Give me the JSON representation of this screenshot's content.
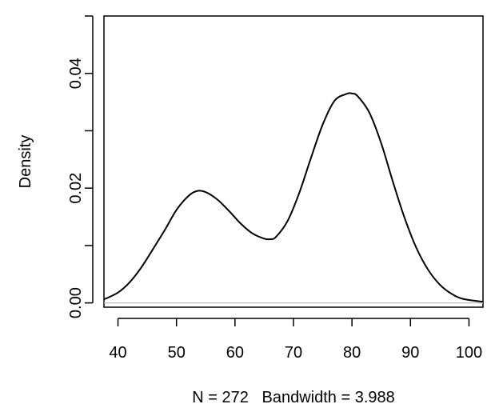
{
  "chart_data": {
    "type": "line",
    "title": "",
    "xlabel": "N = 272   Bandwidth = 3.988",
    "ylabel": "Density",
    "xlim": [
      37.6,
      102.4
    ],
    "ylim": [
      -0.00075,
      0.05
    ],
    "x_ticks": [
      40,
      50,
      60,
      70,
      80,
      90,
      100
    ],
    "x_tick_labels": [
      "40",
      "50",
      "60",
      "70",
      "80",
      "90",
      "100"
    ],
    "y_ticks": [
      0,
      0.01,
      0.02,
      0.03,
      0.04,
      0.05
    ],
    "y_tick_labels": [
      "0.00",
      "",
      "0.02",
      "",
      "0.04",
      ""
    ],
    "baseline": 0,
    "grid": false,
    "legend": "none",
    "colors": {
      "curve": "#000000",
      "baseline": "#bebebe",
      "axis": "#000000"
    },
    "series": [
      {
        "x": [
          37.6,
          40,
          42,
          44,
          46,
          48,
          50,
          52,
          53.5,
          55,
          57,
          59,
          61,
          63,
          65,
          66,
          67,
          69,
          71,
          73,
          75,
          77,
          79,
          80,
          81,
          83,
          85,
          87,
          89,
          91,
          93,
          95,
          97,
          99,
          102.4
        ],
        "y": [
          0.0006,
          0.0018,
          0.0036,
          0.0062,
          0.0094,
          0.0127,
          0.0162,
          0.0186,
          0.0195,
          0.0193,
          0.018,
          0.016,
          0.0138,
          0.0121,
          0.0112,
          0.0111,
          0.0115,
          0.0143,
          0.0192,
          0.0253,
          0.0311,
          0.0352,
          0.0364,
          0.0365,
          0.036,
          0.0331,
          0.0278,
          0.0211,
          0.0148,
          0.0096,
          0.0058,
          0.0032,
          0.0016,
          0.0007,
          0.0002
        ]
      }
    ]
  }
}
